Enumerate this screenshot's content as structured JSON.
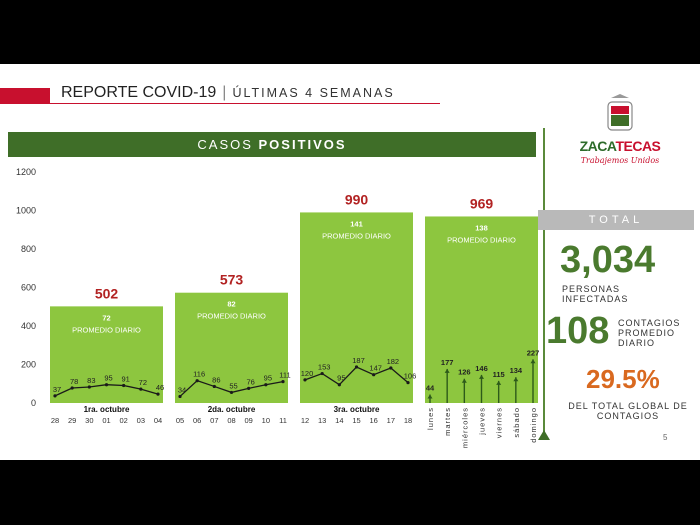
{
  "header": {
    "title": "REPORTE COVID-19",
    "subtitle": "ÚLTIMAS 4 SEMANAS"
  },
  "band": {
    "label_a": "CASOS ",
    "label_b": "POSITIVOS"
  },
  "logo": {
    "name_a": "ZACA",
    "name_b": "TECAS",
    "slogan": "Trabajemos Unidos"
  },
  "summary": {
    "total_label": "TOTAL",
    "total_value": "3,034",
    "total_caption": "PERSONAS INFECTADAS",
    "avg_value": "108",
    "avg_caption": "CONTAGIOS PROMEDIO DIARIO",
    "pct_value": "29.5%",
    "pct_caption": "DEL TOTAL GLOBAL DE CONTAGIOS"
  },
  "page_number": "5",
  "colors": {
    "bar": "#8dc63f",
    "line": "#1a1a1a",
    "week_total": "#b22222",
    "band": "#3f6e28"
  },
  "chart_data": {
    "type": "bar",
    "ylim": [
      0,
      1200
    ],
    "yticks": [
      0,
      200,
      400,
      600,
      800,
      1000,
      1200
    ],
    "weeks": [
      {
        "label": "1ra. octubre",
        "total": 502,
        "avg": 72,
        "avg_label": "PROMEDIO DIARIO",
        "days": [
          "28",
          "29",
          "30",
          "01",
          "02",
          "03",
          "04"
        ],
        "daily": [
          37,
          78,
          83,
          95,
          91,
          72,
          46
        ]
      },
      {
        "label": "2da. octubre",
        "total": 573,
        "avg": 82,
        "avg_label": "PROMEDIO DIARIO",
        "days": [
          "05",
          "06",
          "07",
          "08",
          "09",
          "10",
          "11"
        ],
        "daily": [
          34,
          116,
          86,
          55,
          76,
          95,
          111
        ]
      },
      {
        "label": "3ra. octubre",
        "total": 990,
        "avg": 141,
        "avg_label": "PROMEDIO DIARIO",
        "days": [
          "12",
          "13",
          "14",
          "15",
          "16",
          "17",
          "18"
        ],
        "daily": [
          120,
          153,
          95,
          187,
          147,
          182,
          106
        ]
      },
      {
        "label": "",
        "total": 969,
        "avg": 138,
        "avg_label": "PROMEDIO DIARIO",
        "days": [
          "lunes",
          "martes",
          "miércoles",
          "jueves",
          "viernes",
          "sábado",
          "domingo"
        ],
        "daily": [
          44,
          177,
          126,
          146,
          115,
          134,
          227
        ]
      }
    ]
  }
}
